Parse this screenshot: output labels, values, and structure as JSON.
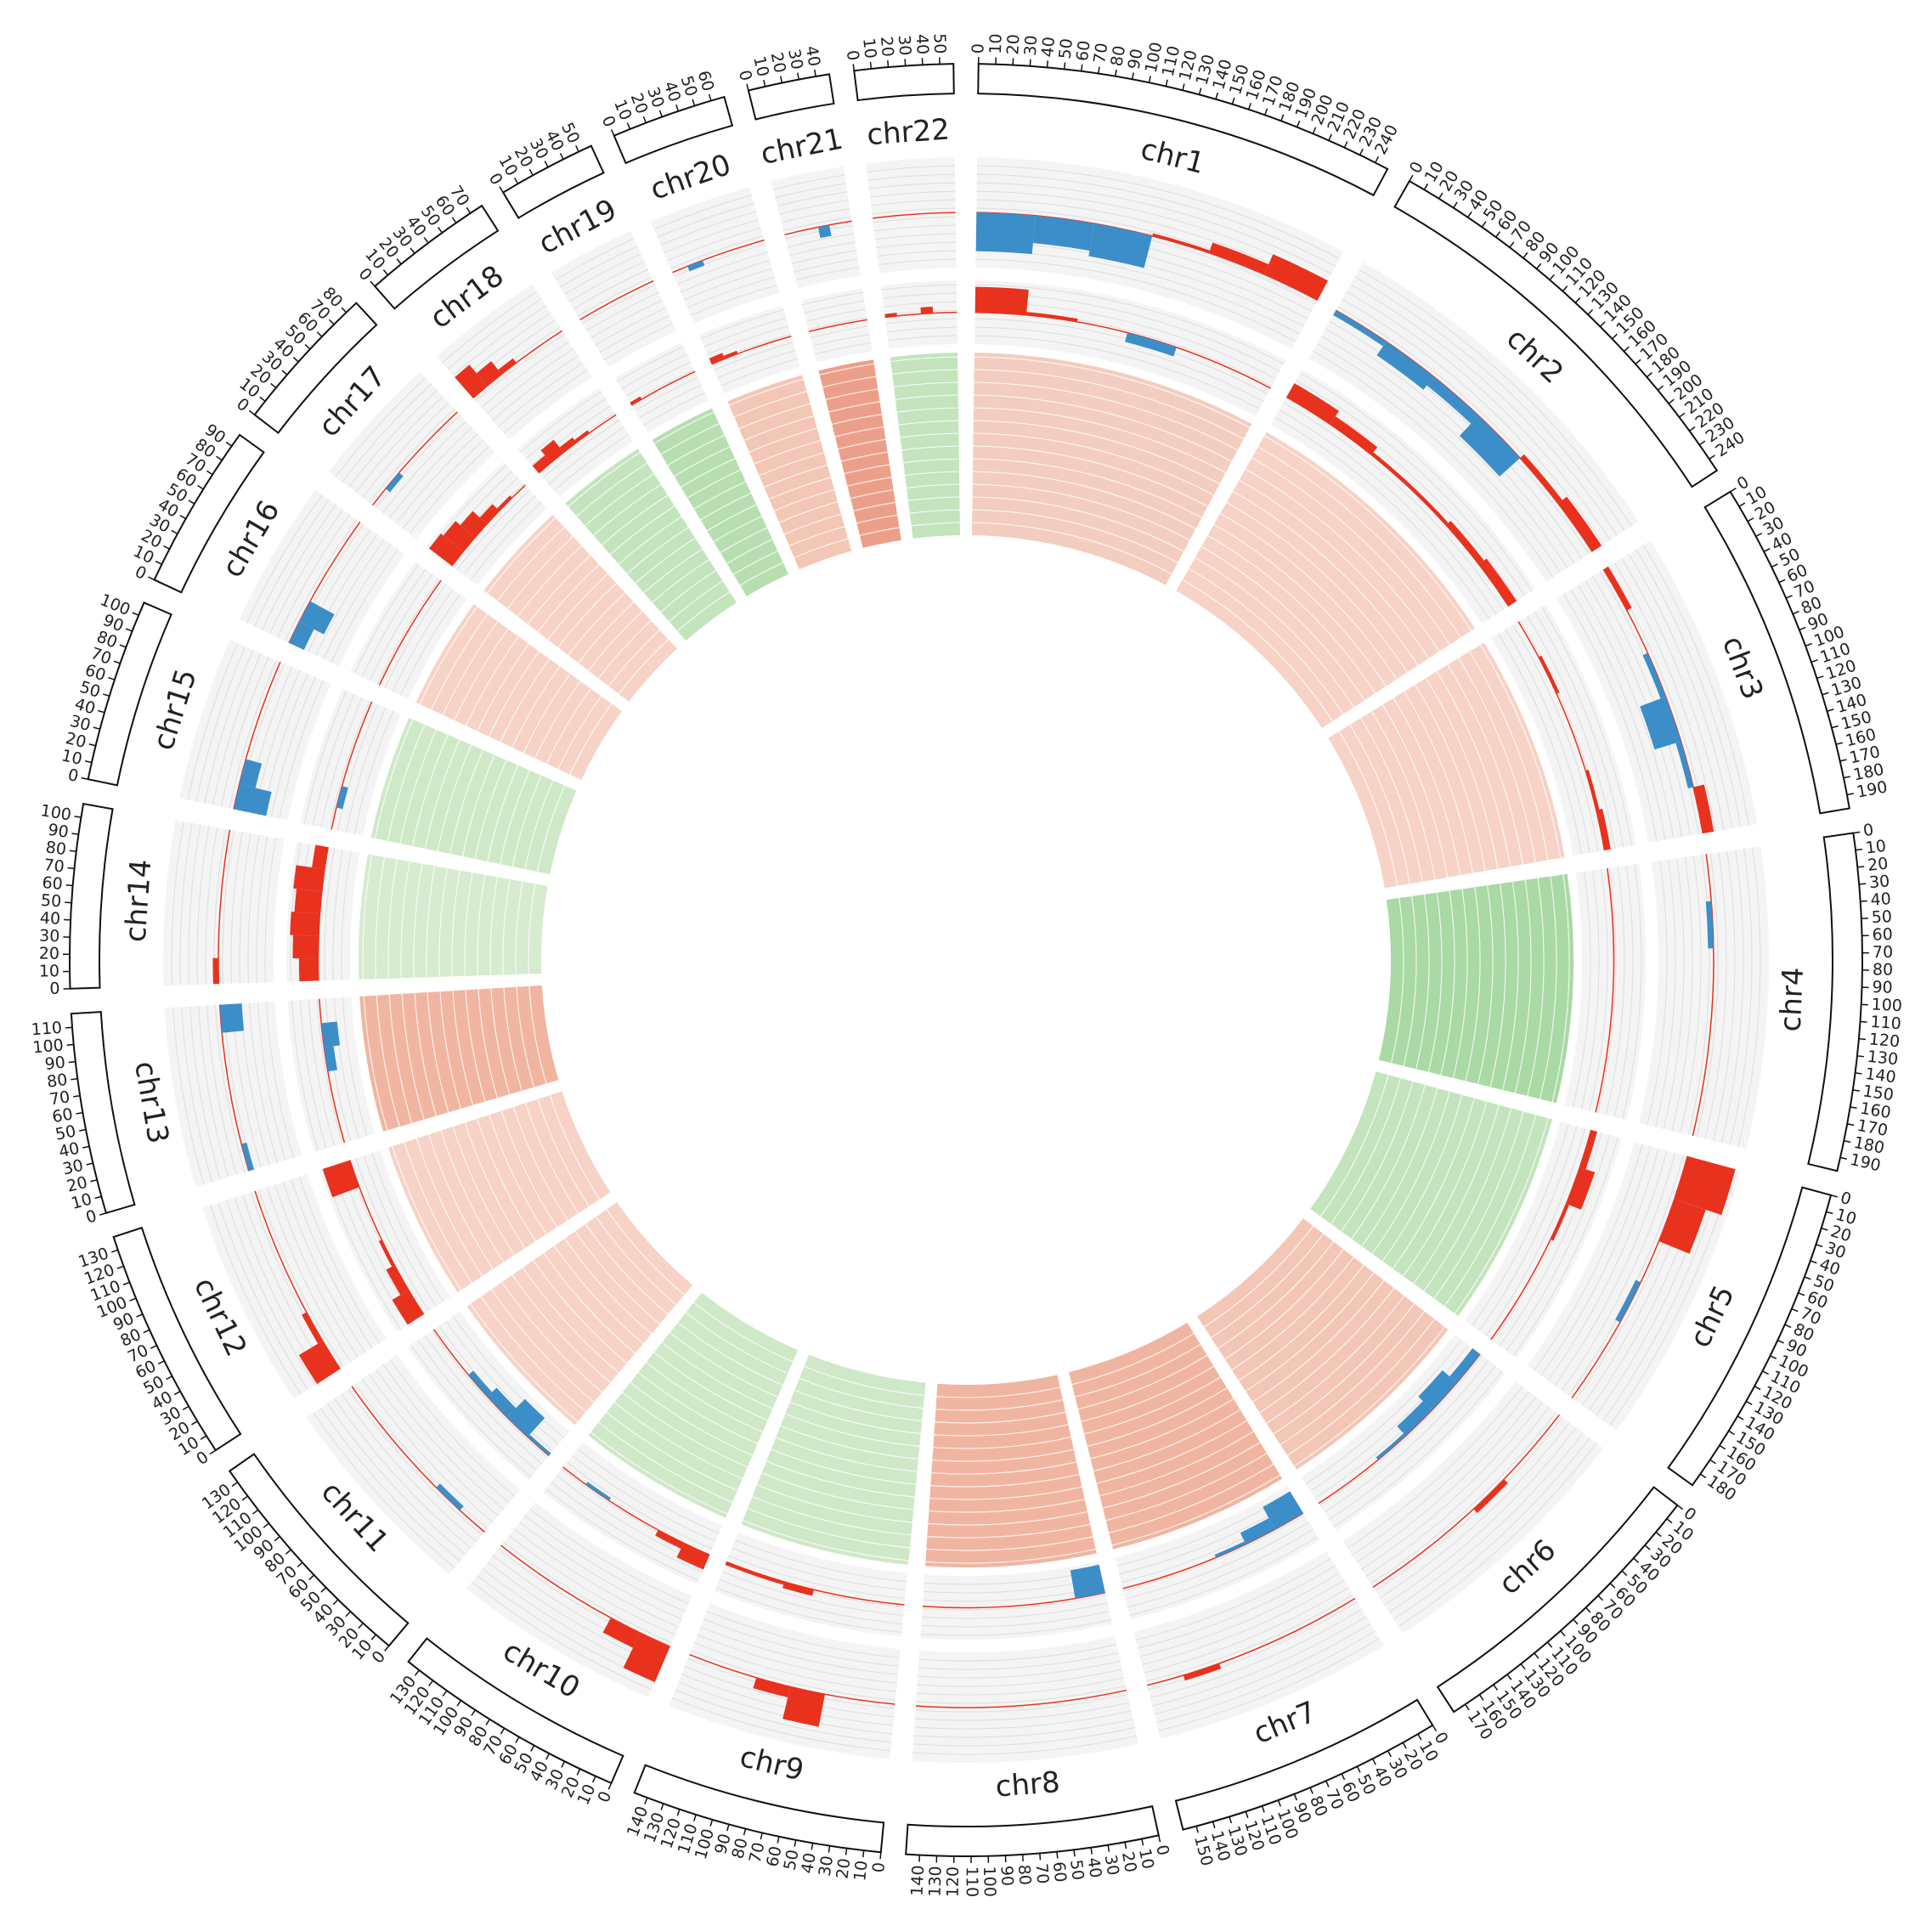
{
  "chart_data": {
    "type": "circos",
    "track_lim": [
      -1,
      1
    ],
    "gain_color": "#e8321e",
    "loss_color": "#3c8ec8",
    "chromosomes": [
      {
        "name": "chr1",
        "ticks": [
          0,
          10,
          20,
          30,
          40,
          50,
          60,
          70,
          80,
          90,
          100,
          110,
          120,
          130,
          140,
          150,
          160,
          170,
          180,
          190,
          200,
          210,
          220,
          230,
          240
        ],
        "track1": [
          -0.7,
          -0.5,
          -0.6,
          0.05,
          0.2,
          0.4
        ],
        "track2": [
          0.8,
          0.1,
          0,
          -0.3,
          0,
          0
        ],
        "heat_color": "#f3cdbf"
      },
      {
        "name": "chr2",
        "ticks": [
          0,
          10,
          20,
          30,
          40,
          50,
          60,
          70,
          80,
          90,
          100,
          110,
          120,
          130,
          140,
          150,
          160,
          170,
          180,
          190,
          200,
          210,
          220,
          230,
          240
        ],
        "track1": [
          -0.1,
          -0.3,
          -0.2,
          -0.5,
          0.1,
          0.2
        ],
        "track2": [
          0.5,
          0.3,
          0.1,
          0.1,
          0.2,
          0.3
        ],
        "heat_color": "#f6d3c6"
      },
      {
        "name": "chr3",
        "ticks": [
          0,
          10,
          20,
          30,
          40,
          50,
          60,
          70,
          80,
          90,
          100,
          110,
          120,
          130,
          140,
          150,
          160,
          170,
          180,
          190
        ],
        "track1": [
          0.1,
          0,
          -0.1,
          -0.5,
          -0.1,
          0.2
        ],
        "track2": [
          0,
          0.1,
          0,
          0,
          0.1,
          0.2
        ],
        "heat_color": "#f6d3c6"
      },
      {
        "name": "chr4",
        "ticks": [
          0,
          10,
          20,
          30,
          40,
          50,
          60,
          70,
          80,
          90,
          100,
          110,
          120,
          130,
          140,
          150,
          160,
          170,
          180,
          190
        ],
        "track1": [
          0,
          -0.1,
          0,
          0,
          0,
          0
        ],
        "track2": [
          0,
          0,
          0,
          0,
          0,
          0
        ],
        "heat_color": "#a9d9a4"
      },
      {
        "name": "chr5",
        "ticks": [
          0,
          10,
          20,
          30,
          40,
          50,
          60,
          70,
          80,
          90,
          100,
          110,
          120,
          130,
          140,
          150,
          160,
          170,
          180
        ],
        "track1": [
          0.9,
          0.6,
          0,
          -0.1,
          0,
          0
        ],
        "track2": [
          0.2,
          0.5,
          0.1,
          0,
          0,
          0
        ],
        "heat_color": "#c3e4bd"
      },
      {
        "name": "chr6",
        "ticks": [
          0,
          10,
          20,
          30,
          40,
          50,
          60,
          70,
          80,
          90,
          100,
          110,
          120,
          130,
          140,
          150,
          160,
          170
        ],
        "track1": [
          0,
          0,
          0.1,
          0,
          0,
          0
        ],
        "track2": [
          -0.3,
          -0.6,
          -0.4,
          -0.1,
          0,
          0
        ],
        "heat_color": "#f3c6b5"
      },
      {
        "name": "chr7",
        "ticks": [
          0,
          10,
          20,
          30,
          40,
          50,
          60,
          70,
          80,
          90,
          100,
          110,
          120,
          130,
          140,
          150
        ],
        "track1": [
          0,
          0,
          0,
          0,
          0.1,
          0
        ],
        "track2": [
          -0.8,
          -0.4,
          -0.1,
          0,
          0,
          0
        ],
        "heat_color": "#f0b5a0"
      },
      {
        "name": "chr8",
        "ticks": [
          0,
          10,
          20,
          30,
          40,
          50,
          60,
          70,
          80,
          90,
          100,
          110,
          120,
          130,
          140
        ],
        "track1": [
          0,
          0,
          0,
          0,
          0,
          0
        ],
        "track2": [
          -0.9,
          0,
          0,
          0,
          0,
          0
        ],
        "heat_color": "#f0b5a0"
      },
      {
        "name": "chr9",
        "ticks": [
          0,
          10,
          20,
          30,
          40,
          50,
          60,
          70,
          80,
          90,
          100,
          110,
          120,
          130,
          140
        ],
        "track1": [
          0,
          0,
          0.6,
          0.2,
          0,
          0
        ],
        "track2": [
          0,
          0,
          0,
          0.2,
          0.1,
          0.1
        ],
        "heat_color": "#cfe8c8"
      },
      {
        "name": "chr10",
        "ticks": [
          0,
          10,
          20,
          30,
          40,
          50,
          60,
          70,
          80,
          90,
          100,
          110,
          120,
          130
        ],
        "track1": [
          0.7,
          0.3,
          0,
          0,
          0,
          0
        ],
        "track2": [
          0.5,
          0.2,
          0,
          0,
          -0.1,
          0
        ],
        "heat_color": "#cfe8c8"
      },
      {
        "name": "chr11",
        "ticks": [
          0,
          10,
          20,
          30,
          40,
          50,
          60,
          70,
          80,
          90,
          100,
          110,
          120,
          130
        ],
        "track1": [
          0,
          -0.1,
          0,
          0,
          0,
          0
        ],
        "track2": [
          -0.1,
          -0.8,
          -0.4,
          -0.2,
          0,
          0
        ],
        "heat_color": "#f6d3c6"
      },
      {
        "name": "chr12",
        "ticks": [
          0,
          10,
          20,
          30,
          40,
          50,
          60,
          70,
          80,
          90,
          100,
          110,
          120,
          130
        ],
        "track1": [
          0.5,
          0.1,
          0,
          0,
          0,
          0
        ],
        "track2": [
          0.6,
          0.3,
          0.1,
          0,
          0,
          0.9
        ],
        "heat_color": "#f6d3c6"
      },
      {
        "name": "chr13",
        "ticks": [
          0,
          10,
          20,
          30,
          40,
          50,
          60,
          70,
          80,
          90,
          100,
          110
        ],
        "track1": [
          -0.1,
          0,
          0,
          0,
          0,
          -0.4
        ],
        "track2": [
          0,
          0,
          0,
          -0.3,
          -0.5,
          0
        ],
        "heat_color": "#f0b5a0"
      },
      {
        "name": "chr14",
        "ticks": [
          0,
          10,
          20,
          30,
          40,
          50,
          60,
          70,
          80,
          90,
          100
        ],
        "track1": [
          0.1,
          0,
          0,
          0,
          0,
          0
        ],
        "track2": [
          0.6,
          0.8,
          0.9,
          0.8,
          0.9,
          0.4
        ],
        "heat_color": "#d6ebcf"
      },
      {
        "name": "chr15",
        "ticks": [
          0,
          10,
          20,
          30,
          40,
          50,
          60,
          70,
          80,
          90,
          100
        ],
        "track1": [
          -0.6,
          -0.3,
          0,
          0,
          0,
          0
        ],
        "track2": [
          0,
          -0.2,
          0,
          0,
          0,
          0
        ],
        "heat_color": "#cfe8c8"
      },
      {
        "name": "chr16",
        "ticks": [
          0,
          10,
          20,
          30,
          40,
          50,
          60,
          70,
          80,
          90
        ],
        "track1": [
          -0.3,
          -0.5,
          0,
          0,
          0,
          0
        ],
        "track2": [
          0,
          0,
          0,
          0,
          0,
          0
        ],
        "heat_color": "#f6d3c6"
      },
      {
        "name": "chr17",
        "ticks": [
          0,
          10,
          20,
          30,
          40,
          50,
          60,
          70,
          80
        ],
        "track1": [
          0,
          -0.1,
          0,
          0,
          0,
          0
        ],
        "track2": [
          0.9,
          0.8,
          0.6,
          0.3,
          0.1,
          0
        ],
        "heat_color": "#f6d3c6"
      },
      {
        "name": "chr18",
        "ticks": [
          0,
          10,
          20,
          30,
          40,
          50,
          60,
          70
        ],
        "track1": [
          0.5,
          0.3,
          0.1,
          0,
          0,
          0
        ],
        "track2": [
          0.3,
          0.5,
          0.2,
          0.1,
          0,
          0
        ],
        "heat_color": "#c3e4bd"
      },
      {
        "name": "chr19",
        "ticks": [
          0,
          10,
          20,
          30,
          40,
          50
        ],
        "track1": [
          0,
          0,
          0,
          0,
          0,
          0
        ],
        "track2": [
          0.1,
          0,
          0,
          0,
          0,
          0
        ],
        "heat_color": "#b7deb0"
      },
      {
        "name": "chr20",
        "ticks": [
          0,
          10,
          20,
          30,
          40,
          50,
          60
        ],
        "track1": [
          0,
          -0.1,
          0,
          0,
          0,
          0
        ],
        "track2": [
          0.2,
          0.1,
          0,
          0,
          0,
          0
        ],
        "heat_color": "#f3c6b5"
      },
      {
        "name": "chr21",
        "ticks": [
          0,
          10,
          20,
          30,
          40
        ],
        "track1": [
          0,
          0,
          0,
          -0.2,
          0,
          0
        ],
        "track2": [
          0,
          0,
          0,
          0,
          0,
          0
        ],
        "heat_color": "#ec9f88"
      },
      {
        "name": "chr22",
        "ticks": [
          0,
          10,
          20,
          30,
          40,
          50
        ],
        "track1": [
          0,
          0,
          0,
          0,
          0,
          0
        ],
        "track2": [
          0.1,
          0,
          0,
          0.2,
          0,
          0
        ],
        "heat_color": "#c3e4bd"
      }
    ]
  }
}
